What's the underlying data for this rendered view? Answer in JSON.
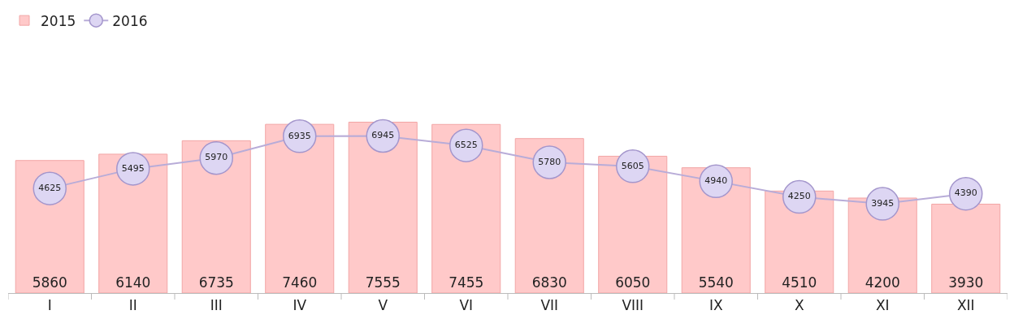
{
  "chart_data": {
    "type": "bar",
    "categories": [
      "I",
      "II",
      "III",
      "IV",
      "V",
      "VI",
      "VII",
      "VIII",
      "IX",
      "X",
      "XI",
      "XII"
    ],
    "series": [
      {
        "name": "2015",
        "color": "#ffc9c9",
        "values": [
          5860,
          6140,
          6735,
          7460,
          7555,
          7455,
          6830,
          6050,
          5540,
          4510,
          4200,
          3930
        ]
      },
      {
        "name": "2016",
        "type": "line",
        "color": "#b8acd8",
        "marker": "circle",
        "values": [
          4625,
          5495,
          5970,
          6935,
          6945,
          6525,
          5780,
          5605,
          4940,
          4250,
          3945,
          4390
        ]
      }
    ],
    "data_labels": true,
    "legend": "top left"
  }
}
